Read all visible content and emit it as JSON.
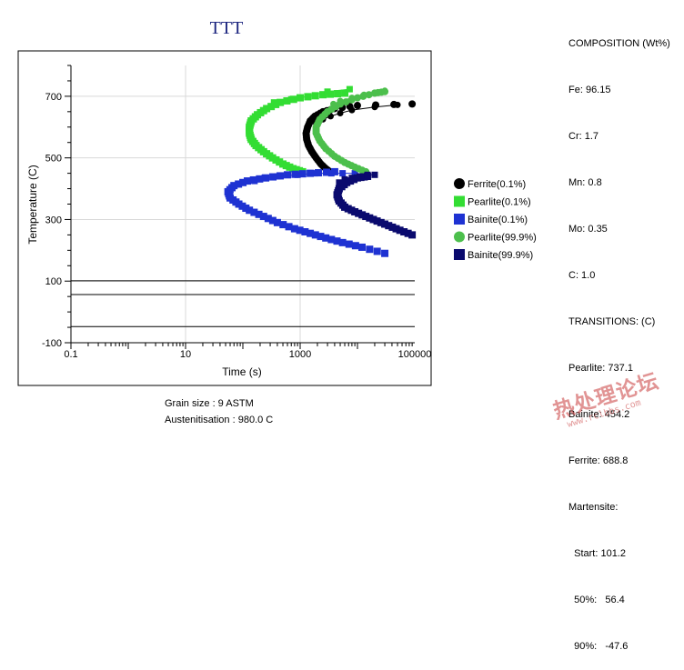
{
  "chart_data": {
    "type": "scatter",
    "title": "TTT",
    "xlabel": "Time (s)",
    "ylabel": "Temperature (C)",
    "xscale": "log",
    "xlim": [
      0.1,
      100000
    ],
    "ylim": [
      -100,
      800
    ],
    "xticks": [
      {
        "value": 0.1,
        "label": "0.1"
      },
      {
        "value": 10,
        "label": "10"
      },
      {
        "value": 1000,
        "label": "1000"
      },
      {
        "value": 100000,
        "label": "100000"
      }
    ],
    "yticks": [
      {
        "value": 700,
        "label": "700"
      },
      {
        "value": 500,
        "label": "500"
      },
      {
        "value": 300,
        "label": "300"
      },
      {
        "value": 100,
        "label": "100"
      },
      {
        "value": -100,
        "label": "-100"
      }
    ],
    "horizontal_lines": [
      101.2,
      56.4,
      -47.6
    ],
    "legend_position": "right",
    "series": [
      {
        "name": "Ferrite(0.1%)",
        "color": "#000000",
        "marker": "circle",
        "points": [
          [
            3300,
            455
          ],
          [
            2800,
            465
          ],
          [
            2300,
            480
          ],
          [
            1900,
            500
          ],
          [
            1600,
            520
          ],
          [
            1400,
            540
          ],
          [
            1300,
            560
          ],
          [
            1270,
            580
          ],
          [
            1350,
            600
          ],
          [
            1500,
            620
          ],
          [
            1800,
            635
          ],
          [
            2500,
            650
          ],
          [
            4000,
            660
          ],
          [
            10000,
            670
          ],
          [
            90000,
            675
          ]
        ],
        "markers": [
          [
            1900,
            612
          ],
          [
            2500,
            625
          ],
          [
            3400,
            635
          ],
          [
            5000,
            645
          ],
          [
            8000,
            655
          ],
          [
            20000,
            665
          ],
          [
            50000,
            672
          ]
        ]
      },
      {
        "name": "Pearlite(0.1%)",
        "color": "#33dd33",
        "marker": "square",
        "points": [
          [
            1100,
            455
          ],
          [
            750,
            465
          ],
          [
            500,
            480
          ],
          [
            330,
            500
          ],
          [
            230,
            520
          ],
          [
            170,
            540
          ],
          [
            140,
            560
          ],
          [
            130,
            580
          ],
          [
            130,
            600
          ],
          [
            140,
            620
          ],
          [
            180,
            640
          ],
          [
            260,
            660
          ],
          [
            450,
            680
          ],
          [
            1000,
            695
          ],
          [
            2500,
            705
          ],
          [
            6000,
            710
          ]
        ],
        "markers": [
          [
            350,
            680
          ],
          [
            700,
            690
          ],
          [
            1400,
            700
          ],
          [
            3000,
            715
          ],
          [
            7300,
            723
          ]
        ]
      },
      {
        "name": "Bainite(0.1%)",
        "color": "#1e32d2",
        "marker": "square",
        "points": [
          [
            30000,
            190
          ],
          [
            12000,
            210
          ],
          [
            5500,
            225
          ],
          [
            2800,
            240
          ],
          [
            1500,
            255
          ],
          [
            800,
            270
          ],
          [
            400,
            290
          ],
          [
            230,
            310
          ],
          [
            130,
            330
          ],
          [
            85,
            350
          ],
          [
            60,
            370
          ],
          [
            55,
            390
          ],
          [
            70,
            410
          ],
          [
            120,
            425
          ],
          [
            250,
            435
          ],
          [
            600,
            445
          ],
          [
            1500,
            450
          ],
          [
            4000,
            455
          ]
        ],
        "markers": [
          [
            160,
            425
          ],
          [
            240,
            435
          ],
          [
            400,
            440
          ],
          [
            900,
            445
          ],
          [
            1800,
            450
          ],
          [
            3500,
            450
          ],
          [
            5500,
            450
          ],
          [
            9000,
            450
          ]
        ]
      },
      {
        "name": "Pearlite(99.9%)",
        "color": "#4cbf4c",
        "marker": "circle",
        "points": [
          [
            14000,
            455
          ],
          [
            9000,
            470
          ],
          [
            6000,
            485
          ],
          [
            4000,
            505
          ],
          [
            2800,
            530
          ],
          [
            2200,
            555
          ],
          [
            1900,
            580
          ],
          [
            1900,
            600
          ],
          [
            2200,
            625
          ],
          [
            3000,
            650
          ],
          [
            5000,
            675
          ],
          [
            10000,
            695
          ],
          [
            20000,
            710
          ],
          [
            30000,
            715
          ]
        ],
        "markers": [
          [
            3800,
            675
          ],
          [
            5000,
            685
          ],
          [
            8000,
            695
          ],
          [
            13000,
            705
          ],
          [
            20000,
            712
          ],
          [
            30000,
            718
          ]
        ]
      },
      {
        "name": "Bainite(99.9%)",
        "color": "#0a0a6e",
        "marker": "square",
        "points": [
          [
            90000,
            250
          ],
          [
            55000,
            265
          ],
          [
            35000,
            280
          ],
          [
            22000,
            295
          ],
          [
            14000,
            310
          ],
          [
            9000,
            325
          ],
          [
            6000,
            340
          ],
          [
            4800,
            360
          ],
          [
            4400,
            380
          ],
          [
            4800,
            400
          ],
          [
            6500,
            420
          ],
          [
            10000,
            435
          ],
          [
            15000,
            440
          ]
        ],
        "markers": [
          [
            4800,
            420
          ],
          [
            6000,
            430
          ],
          [
            8000,
            435
          ],
          [
            11000,
            440
          ],
          [
            15000,
            445
          ],
          [
            20000,
            445
          ]
        ]
      }
    ]
  },
  "composition": {
    "heading": "COMPOSITION (Wt%)",
    "items": [
      "Fe: 96.15",
      "Cr: 1.7",
      "Mn: 0.8",
      "Mo: 0.35",
      "C: 1.0"
    ]
  },
  "transitions": {
    "heading": "TRANSITIONS: (C)",
    "items": [
      "Pearlite: 737.1",
      "Bainite: 454.2",
      "Ferrite: 688.8",
      "Martensite:"
    ],
    "martensite": [
      "  Start: 101.2",
      "  50%:   56.4",
      "  90%:   -47.6"
    ]
  },
  "footer": {
    "grain_size": "Grain size : 9 ASTM",
    "austenitisation": "Austenitisation : 980.0 C"
  },
  "watermark": {
    "text": "热处理论坛",
    "url": "www.rclbbs.com"
  }
}
